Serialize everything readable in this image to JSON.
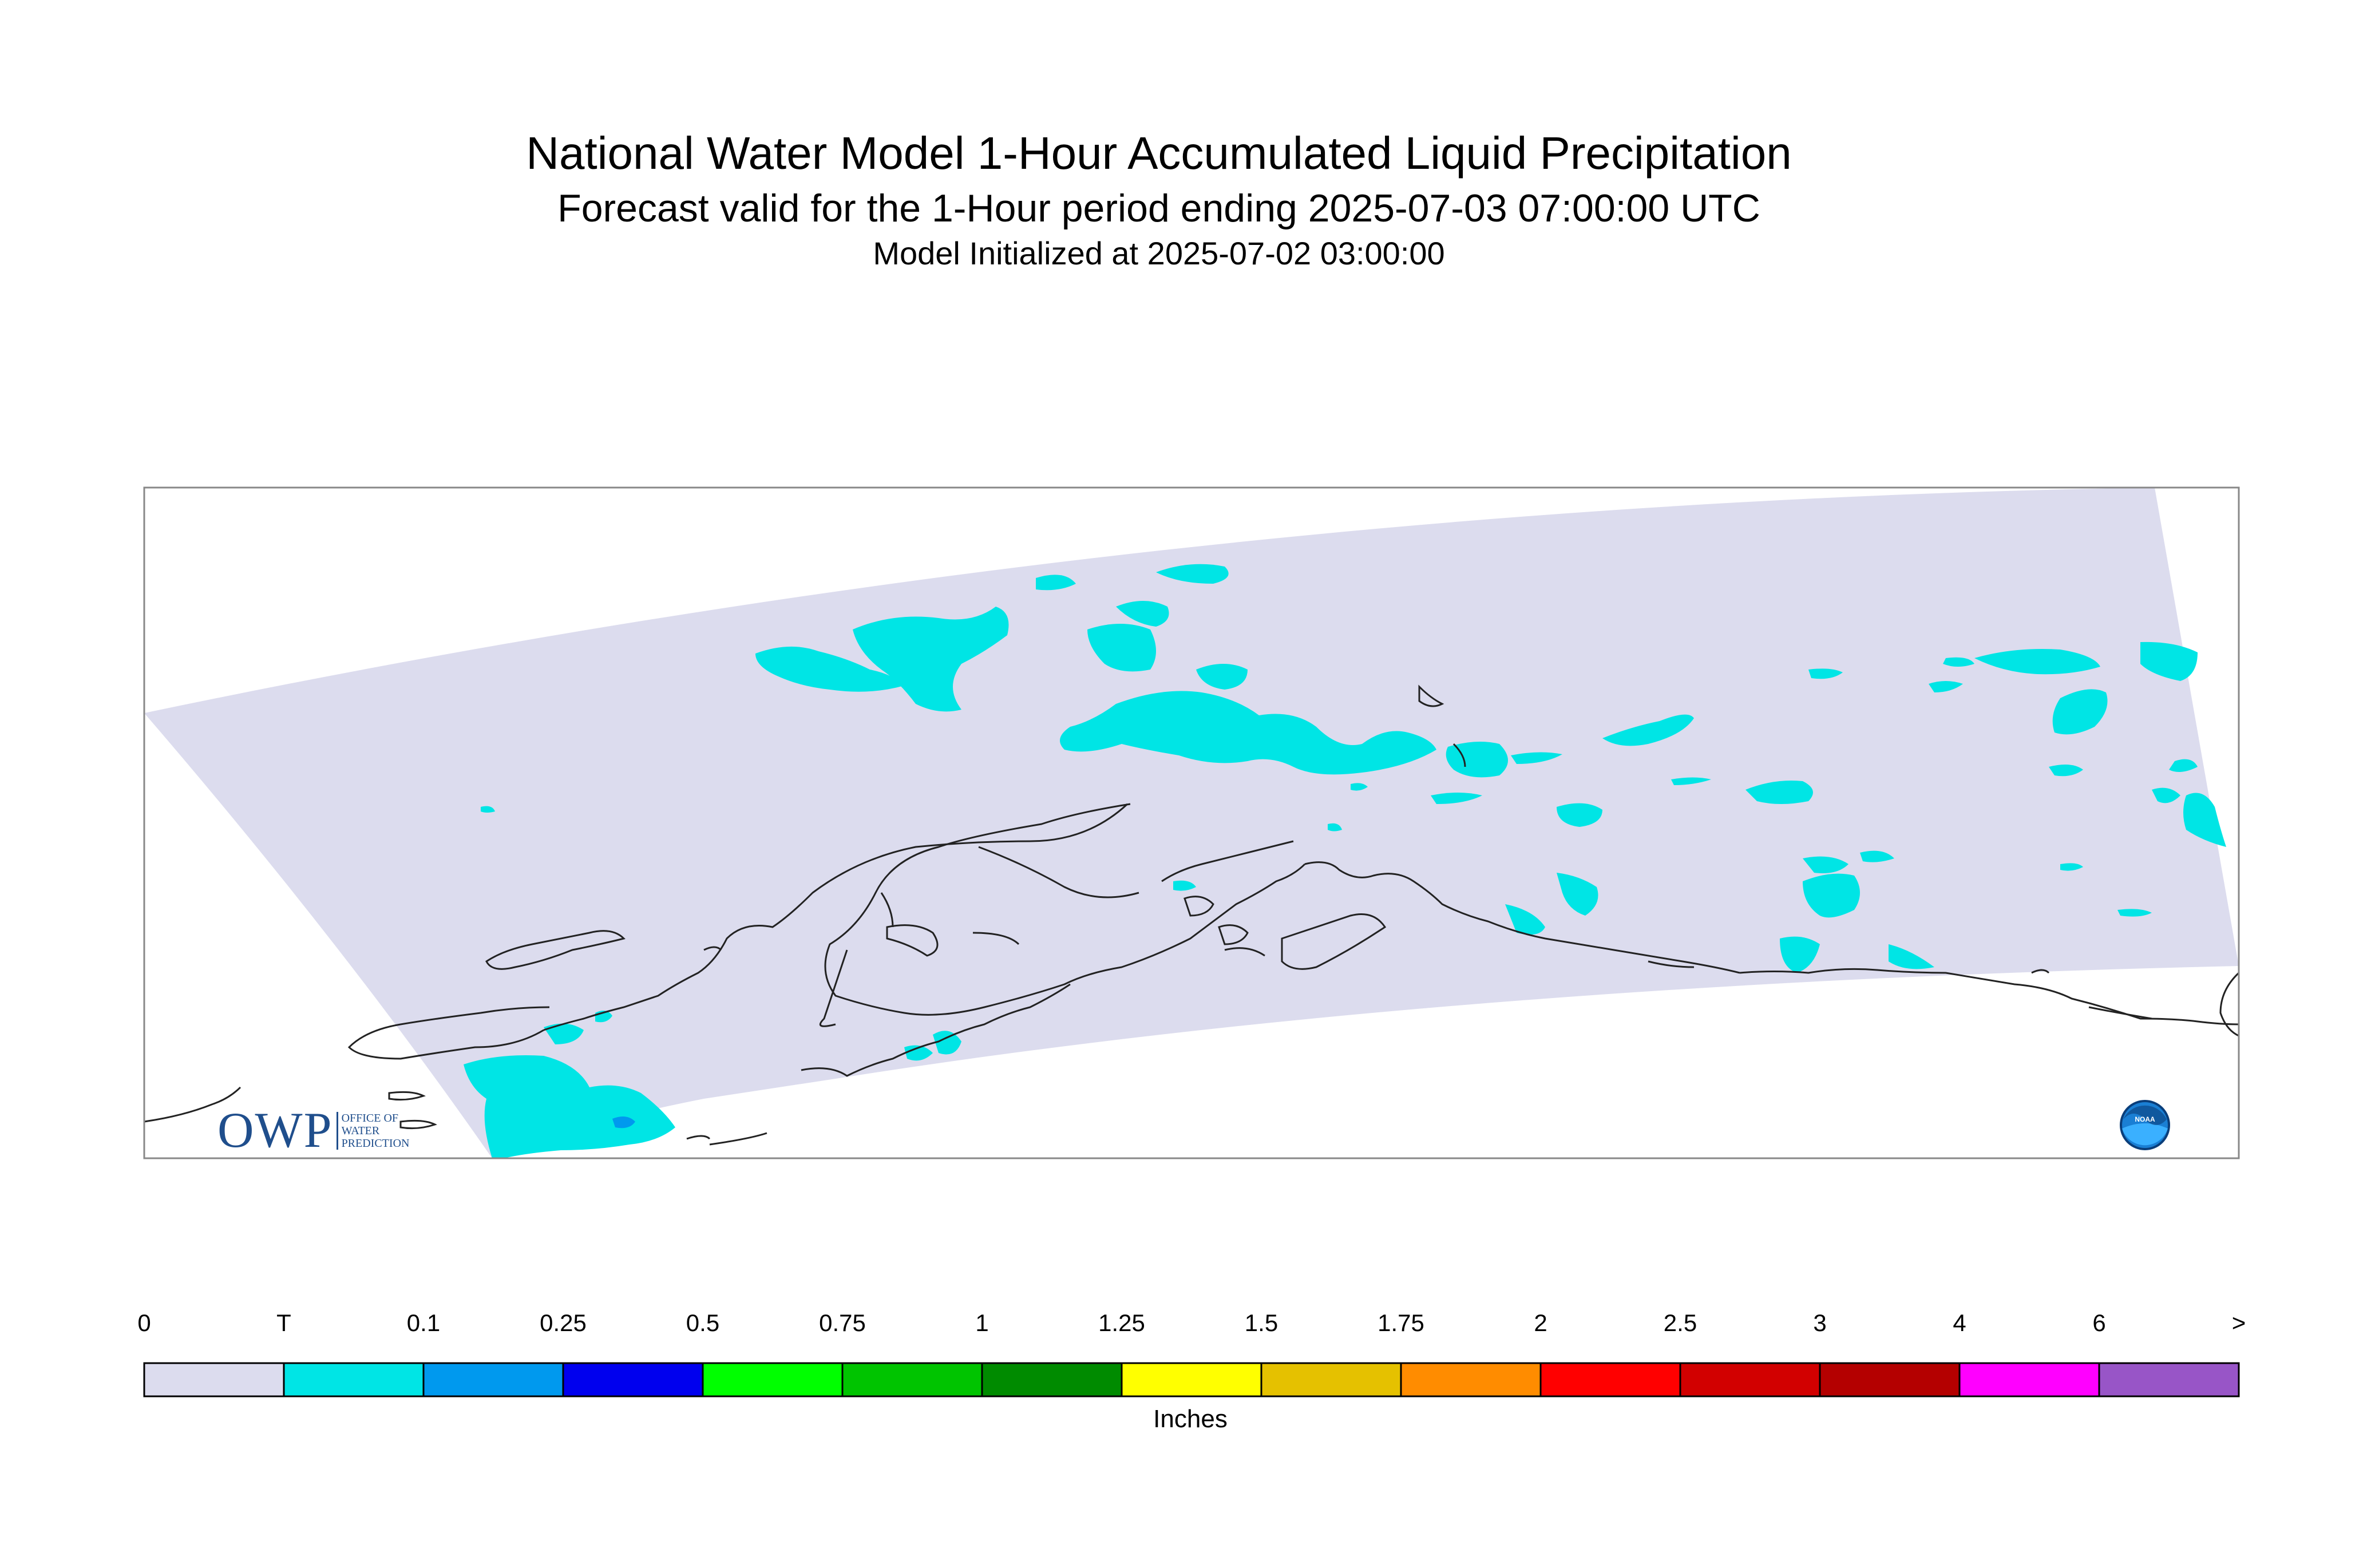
{
  "header": {
    "title": "National Water Model 1-Hour Accumulated Liquid Precipitation",
    "subtitle": "Forecast valid for the 1-Hour period ending 2025-07-03 07:00:00 UTC",
    "init": "Model Initialized at 2025-07-02 03:00:00"
  },
  "logos": {
    "owp_letters": "OWP",
    "owp_line1": "OFFICE OF",
    "owp_line2": "WATER",
    "owp_line3": "PREDICTION",
    "noaa_text": "NOAA"
  },
  "legend": {
    "units": "Inches",
    "labels": [
      "0",
      "T",
      "0.1",
      "0.25",
      "0.5",
      "0.75",
      "1",
      "1.25",
      "1.5",
      "1.75",
      "2",
      "2.5",
      "3",
      "4",
      "6",
      ">"
    ],
    "colors": [
      "#dcdcee",
      "#00e5e5",
      "#0099ee",
      "#0000ee",
      "#00ff00",
      "#00c400",
      "#008b00",
      "#ffff00",
      "#e5c100",
      "#ff8c00",
      "#ff0000",
      "#d20000",
      "#b40000",
      "#ff00ff",
      "#9855c7"
    ]
  },
  "map": {
    "domain_fill": "#dcdcee",
    "trace_color": "#00e5e5",
    "light_color": "#0099ee",
    "coast_color": "#222222"
  }
}
